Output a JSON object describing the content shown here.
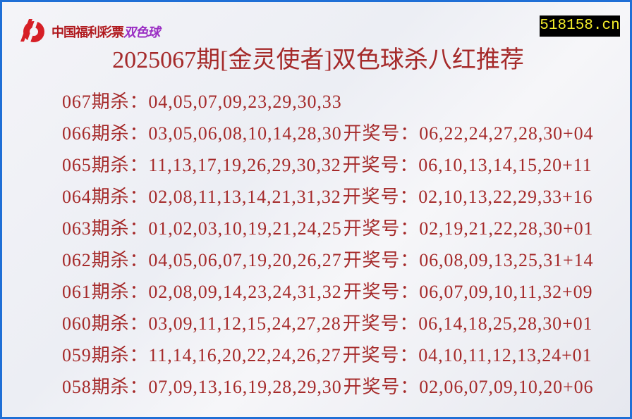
{
  "logo": {
    "text": "中国福利彩票",
    "text_accent": "双色球",
    "colors": {
      "red": "#b0191e",
      "purple": "#9b2fc4"
    }
  },
  "site": "518158.cn",
  "title": "2025067期[金灵使者]双色球杀八红推荐",
  "labels": {
    "kill": "期杀：",
    "draw": "开奖号："
  },
  "colors": {
    "text": "#a52a2a",
    "border": "#1f6fd6",
    "site_bg": "#000000",
    "site_text": "#f5ee2a"
  },
  "rows": [
    {
      "period": "067",
      "kill": "04,05,07,09,23,29,30,33",
      "draw": ""
    },
    {
      "period": "066",
      "kill": "03,05,06,08,10,14,28,30",
      "draw": "06,22,24,27,28,30+04"
    },
    {
      "period": "065",
      "kill": "11,13,17,19,26,29,30,32",
      "draw": "06,10,13,14,15,20+11"
    },
    {
      "period": "064",
      "kill": "02,08,11,13,14,21,31,32",
      "draw": "02,10,13,22,29,33+16"
    },
    {
      "period": "063",
      "kill": "01,02,03,10,19,21,24,25",
      "draw": "02,19,21,22,28,30+01"
    },
    {
      "period": "062",
      "kill": "04,05,06,07,19,20,26,27",
      "draw": "06,08,09,13,25,31+14"
    },
    {
      "period": "061",
      "kill": "02,08,09,14,23,24,31,32",
      "draw": "06,07,09,10,11,32+09"
    },
    {
      "period": "060",
      "kill": "03,09,11,12,15,24,27,28",
      "draw": "06,14,18,25,28,30+01"
    },
    {
      "period": "059",
      "kill": "11,14,16,20,22,24,26,27",
      "draw": "04,10,11,12,13,24+01"
    },
    {
      "period": "058",
      "kill": "07,09,13,16,19,28,29,30",
      "draw": "02,06,07,09,10,20+06"
    }
  ]
}
